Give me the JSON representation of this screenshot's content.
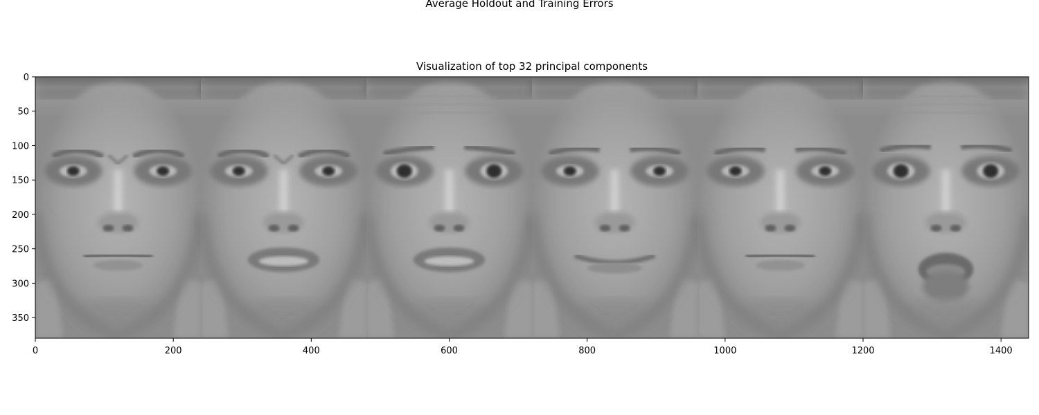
{
  "suptitle": "Average Holdout and Training Errors",
  "axes_title": "Visualization of top 32 principal components",
  "chart_data": {
    "type": "image",
    "title": "Visualization of top 32 principal components",
    "image": {
      "columns": 1440,
      "rows": 380,
      "panels": [
        {
          "x_start": 0,
          "x_end": 240,
          "expression": "angry"
        },
        {
          "x_start": 240,
          "x_end": 480,
          "expression": "disgust"
        },
        {
          "x_start": 480,
          "x_end": 720,
          "expression": "fear"
        },
        {
          "x_start": 720,
          "x_end": 960,
          "expression": "happy"
        },
        {
          "x_start": 960,
          "x_end": 1200,
          "expression": "sad"
        },
        {
          "x_start": 1200,
          "x_end": 1440,
          "expression": "surprise"
        }
      ],
      "colormap": "gray"
    },
    "xlim": [
      0,
      1440
    ],
    "ylim": [
      380,
      0
    ],
    "xticks": [
      0,
      200,
      400,
      600,
      800,
      1000,
      1200,
      1400
    ],
    "yticks": [
      0,
      50,
      100,
      150,
      200,
      250,
      300,
      350
    ],
    "grid": false
  }
}
